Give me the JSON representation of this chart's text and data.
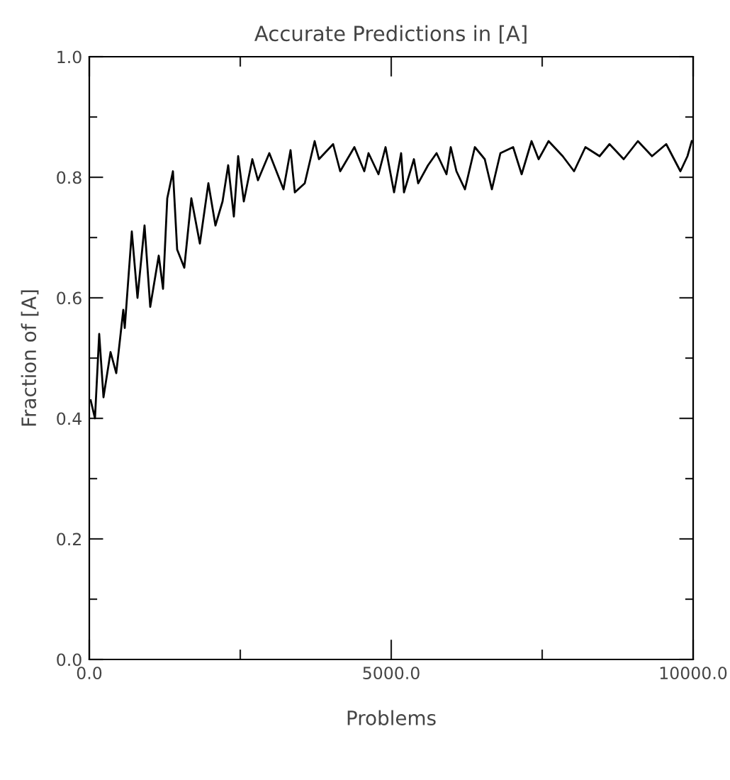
{
  "chart_data": {
    "type": "line",
    "title": "Accurate Predictions in [A]",
    "xlabel": "Problems",
    "ylabel": "Fraction of [A]",
    "x": [
      23,
      94,
      164,
      235,
      352,
      446,
      563,
      587,
      704,
      798,
      915,
      1009,
      1150,
      1221,
      1291,
      1385,
      1455,
      1573,
      1690,
      1831,
      1972,
      2089,
      2207,
      2300,
      2394,
      2465,
      2559,
      2700,
      2793,
      2981,
      3216,
      3333,
      3404,
      3568,
      3732,
      3803,
      4038,
      4155,
      4390,
      4554,
      4624,
      4789,
      4906,
      5047,
      5164,
      5211,
      5376,
      5446,
      5610,
      5751,
      5915,
      5986,
      6080,
      6221,
      6385,
      6549,
      6667,
      6808,
      7019,
      7160,
      7324,
      7441,
      7606,
      7840,
      8028,
      8216,
      8451,
      8615,
      8850,
      9085,
      9319,
      9554,
      9789,
      9906,
      9977
    ],
    "series": [
      {
        "color": "#000000",
        "values": [
          0.43,
          0.4,
          0.54,
          0.435,
          0.51,
          0.475,
          0.58,
          0.55,
          0.71,
          0.6,
          0.72,
          0.585,
          0.67,
          0.615,
          0.765,
          0.81,
          0.68,
          0.65,
          0.765,
          0.69,
          0.79,
          0.72,
          0.76,
          0.82,
          0.735,
          0.835,
          0.76,
          0.83,
          0.795,
          0.84,
          0.78,
          0.845,
          0.775,
          0.79,
          0.86,
          0.83,
          0.855,
          0.81,
          0.85,
          0.81,
          0.84,
          0.805,
          0.85,
          0.775,
          0.84,
          0.775,
          0.83,
          0.79,
          0.82,
          0.84,
          0.805,
          0.85,
          0.81,
          0.78,
          0.85,
          0.83,
          0.78,
          0.84,
          0.85,
          0.805,
          0.86,
          0.83,
          0.86,
          0.835,
          0.81,
          0.85,
          0.835,
          0.855,
          0.83,
          0.86,
          0.835,
          0.855,
          0.81,
          0.835,
          0.86
        ]
      }
    ],
    "xlim": [
      0,
      10000
    ],
    "ylim": [
      0,
      1
    ],
    "xticks": [
      {
        "value": 0,
        "label": "0.0"
      },
      {
        "value": 2500,
        "label": null
      },
      {
        "value": 5000,
        "label": "5000.0"
      },
      {
        "value": 7500,
        "label": null
      },
      {
        "value": 10000,
        "label": "10000.0"
      }
    ],
    "yticks": [
      {
        "value": 0,
        "label": "0.0"
      },
      {
        "value": 0.1,
        "label": null
      },
      {
        "value": 0.2,
        "label": "0.2"
      },
      {
        "value": 0.3,
        "label": null
      },
      {
        "value": 0.4,
        "label": "0.4"
      },
      {
        "value": 0.5,
        "label": null
      },
      {
        "value": 0.6,
        "label": "0.6"
      },
      {
        "value": 0.7,
        "label": null
      },
      {
        "value": 0.8,
        "label": "0.8"
      },
      {
        "value": 0.9,
        "label": null
      },
      {
        "value": 1,
        "label": "1.0"
      }
    ],
    "grid": false,
    "marker": "none",
    "line_style": "solid"
  }
}
